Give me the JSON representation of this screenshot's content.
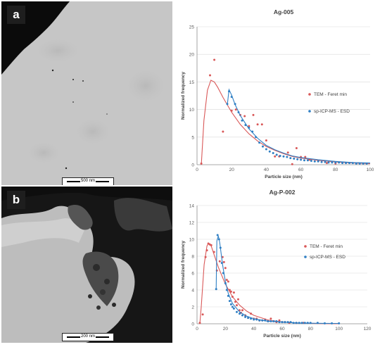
{
  "panels": {
    "a": {
      "letter": "a",
      "scale_label": "500 nm"
    },
    "b": {
      "letter": "b",
      "scale_label": "200 nm"
    }
  },
  "colors": {
    "tem": "#d95858",
    "sp": "#2f7fc4",
    "axis": "#8c8c8c",
    "grid": "#d9d9d9"
  },
  "chart_data": [
    {
      "type": "scatter",
      "title": "Ag-005",
      "xlabel": "Particle size (nm)",
      "ylabel": "Normalized frequency",
      "xlim": [
        0,
        100
      ],
      "ylim": [
        0,
        25
      ],
      "xticks": [
        0,
        20,
        40,
        60,
        80,
        100
      ],
      "yticks": [
        0,
        5,
        10,
        15,
        20,
        25
      ],
      "legend_position": "right",
      "series": [
        {
          "name": "TEM - Feret min",
          "color": "#d95858",
          "points": [
            [
              2.5,
              0.2
            ],
            [
              7.5,
              16.2
            ],
            [
              10,
              19
            ],
            [
              15,
              6
            ],
            [
              20,
              9.8
            ],
            [
              22.5,
              10
            ],
            [
              25,
              9
            ],
            [
              27.5,
              8.8
            ],
            [
              30,
              7
            ],
            [
              32.5,
              9
            ],
            [
              35,
              7.3
            ],
            [
              37.5,
              7.3
            ],
            [
              40,
              4.4
            ],
            [
              45,
              1.5
            ],
            [
              47.5,
              1.5
            ],
            [
              52.5,
              2.2
            ],
            [
              55,
              0.1
            ],
            [
              57.5,
              3
            ],
            [
              60,
              1.4
            ],
            [
              62.5,
              1.4
            ],
            [
              65,
              0.9
            ],
            [
              70,
              0.7
            ],
            [
              75,
              0.3
            ],
            [
              80,
              0.2
            ]
          ],
          "fit": [
            [
              2.5,
              0
            ],
            [
              4,
              8
            ],
            [
              6,
              13.5
            ],
            [
              8,
              15.3
            ],
            [
              10,
              15
            ],
            [
              12,
              14
            ],
            [
              15,
              12.2
            ],
            [
              20,
              9.5
            ],
            [
              25,
              7.3
            ],
            [
              30,
              5.6
            ],
            [
              35,
              4.3
            ],
            [
              40,
              3.3
            ],
            [
              45,
              2.6
            ],
            [
              50,
              2.0
            ],
            [
              55,
              1.5
            ],
            [
              60,
              1.2
            ],
            [
              70,
              0.8
            ],
            [
              80,
              0.5
            ],
            [
              90,
              0.3
            ],
            [
              100,
              0.2
            ]
          ]
        },
        {
          "name": "sp-ICP-MS - ESD",
          "color": "#2f7fc4",
          "points": [
            [
              17.5,
              11
            ],
            [
              18.5,
              13.3
            ],
            [
              20,
              12.3
            ],
            [
              22,
              11
            ],
            [
              24,
              9.5
            ],
            [
              26,
              8
            ],
            [
              28,
              7.2
            ],
            [
              30,
              6.7
            ],
            [
              32,
              6
            ],
            [
              34,
              5
            ],
            [
              36,
              4
            ],
            [
              38,
              3.3
            ],
            [
              40,
              2.8
            ],
            [
              42,
              2.4
            ],
            [
              44,
              2.1
            ],
            [
              46,
              1.8
            ],
            [
              48,
              1.6
            ],
            [
              50,
              1.5
            ],
            [
              52,
              1.4
            ],
            [
              54,
              1.2
            ],
            [
              56,
              1.1
            ],
            [
              58,
              1
            ],
            [
              60,
              0.9
            ],
            [
              62,
              0.8
            ],
            [
              64,
              0.8
            ],
            [
              66,
              0.7
            ],
            [
              68,
              0.6
            ],
            [
              70,
              0.6
            ],
            [
              72,
              0.5
            ],
            [
              74,
              0.5
            ],
            [
              76,
              0.4
            ],
            [
              78,
              0.4
            ],
            [
              80,
              0.4
            ],
            [
              82,
              0.4
            ],
            [
              84,
              0.3
            ],
            [
              86,
              0.3
            ],
            [
              88,
              0.3
            ],
            [
              90,
              0.3
            ],
            [
              92,
              0.2
            ],
            [
              94,
              0.2
            ],
            [
              96,
              0.2
            ],
            [
              98,
              0.2
            ]
          ],
          "fit": [
            [
              17.5,
              10.8
            ],
            [
              18.5,
              13.6
            ],
            [
              20,
              12.6
            ],
            [
              22,
              10.9
            ],
            [
              25,
              8.9
            ],
            [
              30,
              6.5
            ],
            [
              35,
              4.8
            ],
            [
              40,
              3.5
            ],
            [
              45,
              2.7
            ],
            [
              50,
              2.1
            ],
            [
              55,
              1.6
            ],
            [
              60,
              1.3
            ],
            [
              70,
              0.9
            ],
            [
              80,
              0.6
            ],
            [
              90,
              0.4
            ],
            [
              100,
              0.3
            ]
          ]
        }
      ]
    },
    {
      "type": "scatter",
      "title": "Ag-P-002",
      "xlabel": "Particle size (nm)",
      "ylabel": "Normalized frequency",
      "xlim": [
        0,
        120
      ],
      "ylim": [
        0,
        14
      ],
      "xticks": [
        0,
        20,
        40,
        60,
        80,
        100,
        120
      ],
      "yticks": [
        0,
        2,
        4,
        6,
        8,
        10,
        12,
        14
      ],
      "legend_position": "right",
      "series": [
        {
          "name": "TEM - Feret min",
          "color": "#d95858",
          "points": [
            [
              2,
              0.1
            ],
            [
              4,
              1.1
            ],
            [
              6,
              7.9
            ],
            [
              7,
              8.7
            ],
            [
              8,
              9.5
            ],
            [
              9,
              9.4
            ],
            [
              10,
              9.3
            ],
            [
              12,
              8.5
            ],
            [
              14,
              6.3
            ],
            [
              16,
              7.4
            ],
            [
              18,
              7.9
            ],
            [
              19,
              7.3
            ],
            [
              20,
              6.6
            ],
            [
              21,
              5.2
            ],
            [
              22,
              5.0
            ],
            [
              23,
              4.0
            ],
            [
              24,
              3.8
            ],
            [
              25,
              3.2
            ],
            [
              26,
              3.7
            ],
            [
              27,
              2.6
            ],
            [
              28,
              2.2
            ],
            [
              29,
              2.9
            ],
            [
              30,
              1.6
            ],
            [
              31,
              1.3
            ],
            [
              32,
              1.6
            ],
            [
              34,
              1.0
            ],
            [
              36,
              0.7
            ],
            [
              38,
              1.2
            ],
            [
              40,
              0.6
            ],
            [
              42,
              0.6
            ],
            [
              44,
              0.4
            ],
            [
              46,
              0.4
            ],
            [
              48,
              0.5
            ],
            [
              50,
              0.3
            ],
            [
              52,
              0.6
            ],
            [
              54,
              0.3
            ],
            [
              56,
              0.2
            ],
            [
              58,
              0.4
            ],
            [
              60,
              0.2
            ],
            [
              62,
              0.2
            ],
            [
              65,
              0.1
            ],
            [
              70,
              0.1
            ],
            [
              75,
              0.1
            ]
          ],
          "fit": [
            [
              2,
              0
            ],
            [
              3,
              2
            ],
            [
              5,
              7
            ],
            [
              7,
              9.2
            ],
            [
              8,
              9.5
            ],
            [
              10,
              9.2
            ],
            [
              12,
              8.2
            ],
            [
              15,
              6.7
            ],
            [
              20,
              4.7
            ],
            [
              25,
              3.2
            ],
            [
              30,
              2.2
            ],
            [
              35,
              1.5
            ],
            [
              40,
              1.0
            ],
            [
              50,
              0.45
            ],
            [
              60,
              0.2
            ],
            [
              70,
              0.1
            ],
            [
              80,
              0.05
            ],
            [
              90,
              0.02
            ],
            [
              100,
              0.01
            ]
          ]
        },
        {
          "name": "sp-ICP-MS - ESD",
          "color": "#2f7fc4",
          "points": [
            [
              13.5,
              4.1
            ],
            [
              14.5,
              10.5
            ],
            [
              15.5,
              10
            ],
            [
              16.5,
              9
            ],
            [
              17.5,
              7.2
            ],
            [
              18.5,
              6
            ],
            [
              20,
              4.8
            ],
            [
              21,
              4.0
            ],
            [
              22,
              3.3
            ],
            [
              23,
              2.7
            ],
            [
              24,
              2.3
            ],
            [
              25,
              2.0
            ],
            [
              26,
              1.8
            ],
            [
              28,
              1.4
            ],
            [
              30,
              1.2
            ],
            [
              32,
              1.0
            ],
            [
              34,
              0.8
            ],
            [
              36,
              0.7
            ],
            [
              38,
              0.6
            ],
            [
              40,
              0.5
            ],
            [
              42,
              0.5
            ],
            [
              44,
              0.4
            ],
            [
              46,
              0.4
            ],
            [
              48,
              0.4
            ],
            [
              50,
              0.3
            ],
            [
              52,
              0.3
            ],
            [
              54,
              0.3
            ],
            [
              56,
              0.3
            ],
            [
              58,
              0.2
            ],
            [
              60,
              0.2
            ],
            [
              62,
              0.2
            ],
            [
              64,
              0.2
            ],
            [
              66,
              0.2
            ],
            [
              68,
              0.1
            ],
            [
              70,
              0.1
            ],
            [
              72,
              0.1
            ],
            [
              74,
              0.1
            ],
            [
              76,
              0.1
            ],
            [
              78,
              0.1
            ],
            [
              80,
              0.1
            ],
            [
              85,
              0.1
            ],
            [
              90,
              0.05
            ],
            [
              95,
              0.05
            ],
            [
              100,
              0.05
            ]
          ],
          "fit": [
            [
              13.5,
              4.0
            ],
            [
              14,
              9.8
            ],
            [
              15,
              10.4
            ],
            [
              16,
              9.6
            ],
            [
              18,
              7.0
            ],
            [
              20,
              5.0
            ],
            [
              22,
              3.6
            ],
            [
              25,
              2.4
            ],
            [
              30,
              1.4
            ],
            [
              35,
              0.9
            ],
            [
              40,
              0.6
            ],
            [
              50,
              0.3
            ],
            [
              60,
              0.2
            ],
            [
              70,
              0.1
            ],
            [
              80,
              0.07
            ],
            [
              90,
              0.05
            ],
            [
              100,
              0.04
            ]
          ]
        }
      ]
    }
  ]
}
